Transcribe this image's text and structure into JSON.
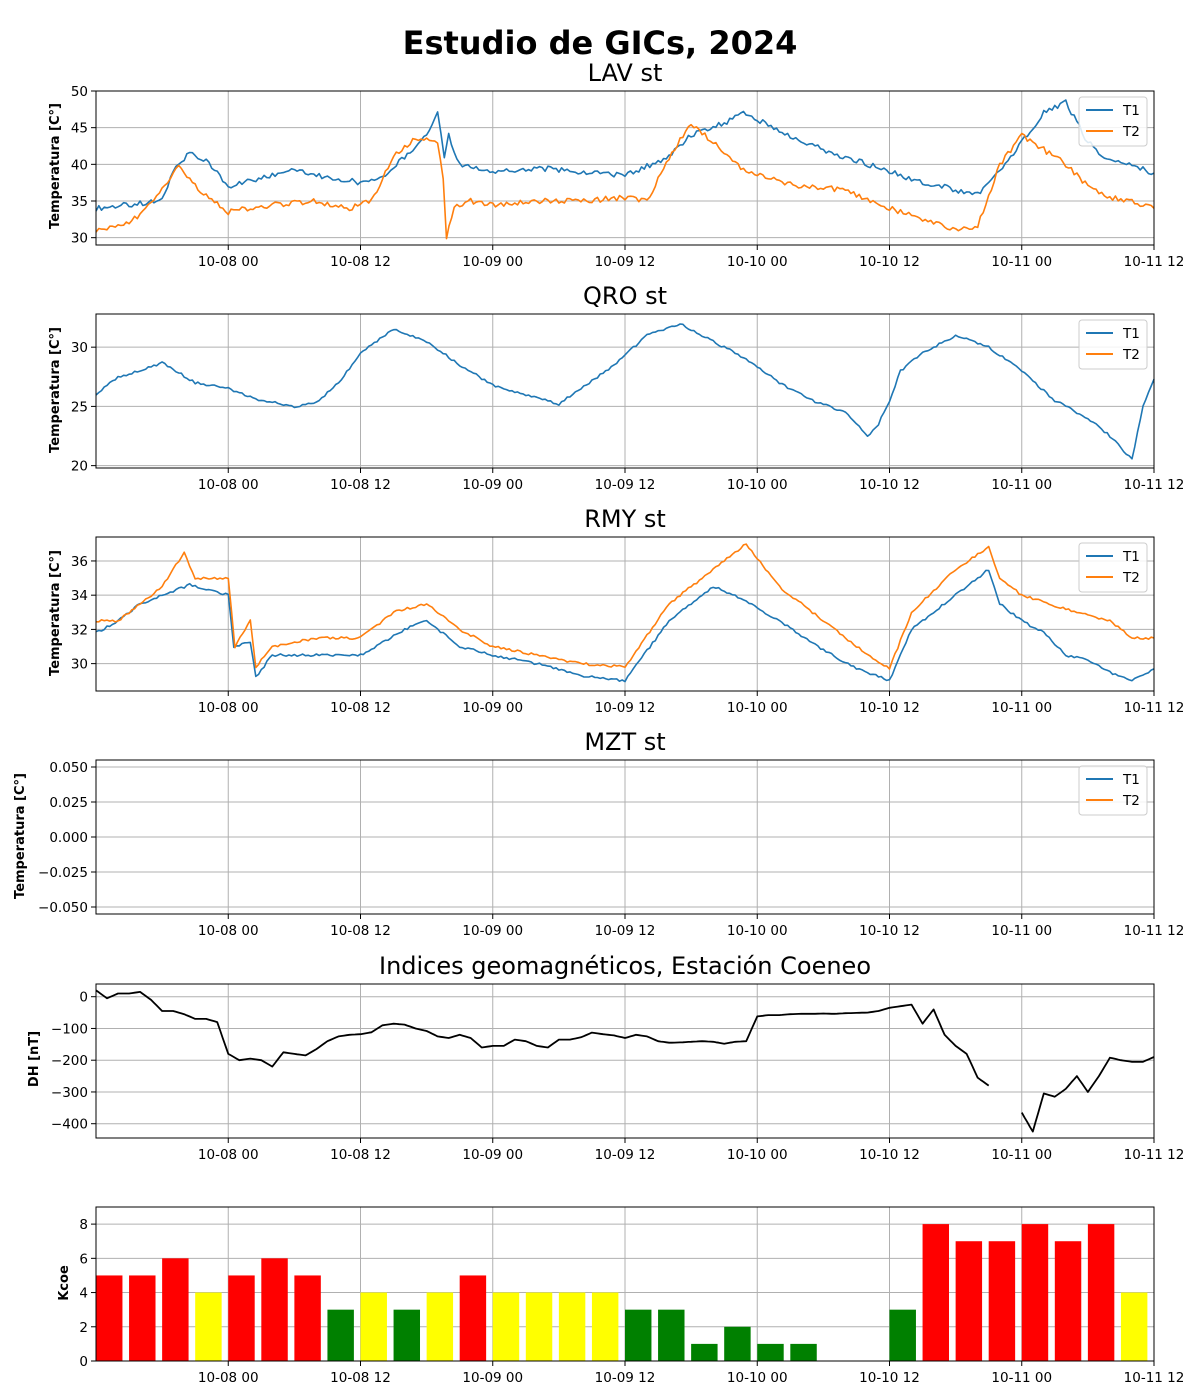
{
  "figure": {
    "title": "Estudio de GICs, 2024",
    "x_tick_labels": [
      "10-08 00",
      "10-08 12",
      "10-09 00",
      "10-09 12",
      "10-10 00",
      "10-10 12",
      "10-11 00",
      "10-11 12"
    ],
    "x_range_hours": [
      -12,
      84
    ],
    "colors": {
      "T1": "#1f77b4",
      "T2": "#ff7f0e",
      "DH": "#000000",
      "grid": "#b0b0b0"
    }
  },
  "chart_data": [
    {
      "type": "line",
      "title": "LAV st",
      "ylabel": "Temperatura [C°]",
      "ylim": [
        29,
        50
      ],
      "yticks": [
        "30",
        "35",
        "40",
        "45",
        "50"
      ],
      "ytick_values": [
        30,
        35,
        40,
        45,
        50
      ],
      "legend": "top-right",
      "grid": true,
      "x_unit": "hours since 10-08 00",
      "series": [
        {
          "name": "T1",
          "color": "#1f77b4",
          "x": [
            -12,
            -9,
            -6,
            -5,
            -3.5,
            -2,
            0,
            3,
            6,
            8,
            10,
            12,
            14,
            16,
            18,
            19,
            19.6,
            20,
            21,
            24,
            28,
            32,
            36,
            40,
            42,
            44,
            47,
            50,
            54,
            58,
            62,
            66,
            68,
            70,
            72,
            74,
            76,
            78,
            80,
            82,
            84
          ],
          "y": [
            34,
            34.5,
            35,
            39,
            41.5,
            40.5,
            37,
            38,
            39.5,
            38.5,
            38,
            37.5,
            38,
            41,
            44,
            47,
            41,
            44,
            40,
            39,
            39.5,
            39,
            38.5,
            41,
            44,
            45,
            47,
            44.5,
            42,
            40,
            38,
            36.5,
            36,
            39,
            43,
            47,
            48.5,
            43,
            40.5,
            40,
            38.8
          ]
        },
        {
          "name": "T2",
          "color": "#ff7f0e",
          "x": [
            -12,
            -10,
            -8,
            -6,
            -4.5,
            -3,
            0,
            4,
            8,
            11,
            13,
            15,
            17,
            19,
            19.5,
            19.8,
            20.5,
            22,
            24,
            28,
            32,
            36,
            38,
            40,
            42,
            44,
            46,
            48,
            52,
            56,
            59,
            62,
            64,
            66,
            68,
            70,
            72,
            74,
            76,
            78,
            80,
            82,
            84
          ],
          "y": [
            31,
            31.5,
            33,
            36.5,
            40,
            37,
            33.5,
            34.5,
            35,
            34,
            35,
            41,
            43.5,
            43,
            38,
            30,
            34,
            35,
            34.5,
            35,
            35,
            35.5,
            35,
            41,
            45.5,
            43,
            40,
            38.5,
            37,
            36.5,
            34.5,
            33,
            32,
            31,
            31.5,
            40,
            44,
            42,
            40,
            37,
            35.5,
            35,
            34
          ]
        }
      ]
    },
    {
      "type": "line",
      "title": "QRO st",
      "ylabel": "Temperatura [C°]",
      "ylim": [
        19.8,
        32.8
      ],
      "yticks": [
        "20",
        "25",
        "30"
      ],
      "ytick_values": [
        20,
        25,
        30
      ],
      "legend": "top-right",
      "grid": true,
      "x_unit": "hours since 10-08 00",
      "series": [
        {
          "name": "T1",
          "color": "#1f77b4",
          "x": [
            -12,
            -10,
            -8,
            -6,
            -3,
            0,
            3,
            6,
            8,
            10,
            12,
            15,
            18,
            21,
            24,
            27,
            30,
            32,
            35,
            38,
            41,
            44,
            47,
            50,
            53,
            56,
            58,
            59,
            60,
            61,
            63,
            66,
            69,
            72,
            75,
            78,
            80,
            82,
            83,
            84
          ],
          "y": [
            26,
            27.5,
            28,
            28.7,
            27,
            26.5,
            25.5,
            25,
            25.3,
            27,
            29.5,
            31.5,
            30.5,
            28.5,
            26.8,
            26,
            25.2,
            26.5,
            28.5,
            31,
            32,
            30.5,
            29,
            27,
            25.5,
            24.5,
            22.5,
            23.5,
            25.5,
            28,
            29.5,
            31,
            30,
            28,
            25.5,
            24,
            22.5,
            20.5,
            25,
            27.3
          ]
        },
        {
          "name": "T2",
          "color": "#ff7f0e",
          "x": [],
          "y": []
        }
      ]
    },
    {
      "type": "line",
      "title": "RMY st",
      "ylabel": "Temperatura [C°]",
      "ylim": [
        28.4,
        37.4
      ],
      "yticks": [
        "30",
        "32",
        "34",
        "36"
      ],
      "ytick_values": [
        30,
        32,
        34,
        36
      ],
      "legend": "top-right",
      "grid": true,
      "x_unit": "hours since 10-08 00",
      "series": [
        {
          "name": "T1",
          "color": "#1f77b4",
          "x": [
            -12,
            -10,
            -8,
            -6,
            -3.5,
            0,
            0.5,
            2,
            2.5,
            4,
            8,
            12,
            16,
            18,
            21,
            24,
            28,
            32,
            36,
            40,
            44,
            46,
            50,
            54,
            57,
            60,
            62,
            66,
            69,
            70,
            72,
            74,
            76,
            78,
            80,
            82,
            84
          ],
          "y": [
            31.8,
            32.5,
            33.5,
            34,
            34.6,
            34,
            31,
            31.3,
            29.2,
            30.5,
            30.5,
            30.5,
            32,
            32.5,
            31,
            30.5,
            30,
            29.3,
            29,
            32.5,
            34.5,
            34,
            32.5,
            30.8,
            29.7,
            29,
            32,
            34,
            35.5,
            33.5,
            32.5,
            31.8,
            30.5,
            30.2,
            29.5,
            29,
            29.7
          ]
        },
        {
          "name": "T2",
          "color": "#ff7f0e",
          "x": [
            -12,
            -10,
            -8,
            -6,
            -4,
            -3,
            0,
            0.6,
            2,
            2.5,
            4,
            8,
            12,
            15,
            18,
            21,
            24,
            28,
            32,
            36,
            40,
            44,
            47,
            50,
            54,
            57,
            60,
            62,
            66,
            69,
            70,
            72,
            76,
            80,
            82,
            84
          ],
          "y": [
            32.5,
            32.5,
            33.5,
            34.5,
            36.5,
            35,
            35,
            31,
            32.5,
            29.8,
            31,
            31.5,
            31.5,
            33,
            33.5,
            32,
            31,
            30.5,
            30,
            29.8,
            33.5,
            35.5,
            37,
            34.5,
            32.5,
            31,
            29.7,
            33,
            35.5,
            36.8,
            35,
            34,
            33.2,
            32.5,
            31.5,
            31.5
          ]
        }
      ]
    },
    {
      "type": "line",
      "title": "MZT st",
      "ylabel": "Temperatura [C°]",
      "ylim": [
        -0.055,
        0.055
      ],
      "yticks": [
        "−0.050",
        "−0.025",
        "0.000",
        "0.025",
        "0.050"
      ],
      "ytick_values": [
        -0.05,
        -0.025,
        0,
        0.025,
        0.05
      ],
      "legend": "top-right",
      "grid": true,
      "x_unit": "hours since 10-08 00",
      "series": [
        {
          "name": "T1",
          "color": "#1f77b4",
          "x": [],
          "y": []
        },
        {
          "name": "T2",
          "color": "#ff7f0e",
          "x": [],
          "y": []
        }
      ]
    },
    {
      "type": "line",
      "title": "Indices geomagnéticos, Estación Coeneo",
      "ylabel": "DH [nT]",
      "ylim": [
        -445,
        40
      ],
      "yticks": [
        "0",
        "−100",
        "−200",
        "−300",
        "−400"
      ],
      "ytick_values": [
        0,
        -100,
        -200,
        -300,
        -400
      ],
      "grid": true,
      "x_unit": "hours since 10-08 00",
      "series": [
        {
          "name": "DH",
          "color": "#000000",
          "x": [
            -12,
            -11,
            -10,
            -9,
            -8,
            -7,
            -6,
            -5,
            -4,
            -3,
            -2,
            -1,
            0,
            1,
            2,
            3,
            4,
            5,
            6,
            7,
            8,
            9,
            10,
            11,
            12,
            13,
            14,
            15,
            16,
            17,
            18,
            19,
            20,
            21,
            22,
            23,
            24,
            25,
            26,
            27,
            28,
            29,
            30,
            31,
            32,
            33,
            34,
            35,
            36,
            37,
            38,
            39,
            40,
            41,
            42,
            43,
            44,
            45,
            46,
            47,
            48,
            49,
            50,
            51,
            52,
            53,
            54,
            55,
            56,
            57,
            58,
            59,
            60,
            61,
            62,
            63,
            64,
            65,
            66,
            67,
            68,
            69,
            70,
            71,
            72,
            73,
            74,
            75,
            76,
            77,
            78,
            79,
            80,
            81,
            82,
            83,
            84
          ],
          "y": [
            20,
            -5,
            10,
            10,
            15,
            -10,
            -45,
            -45,
            -55,
            -70,
            -70,
            -80,
            -180,
            -200,
            -195,
            -200,
            -220,
            -175,
            -180,
            -185,
            -165,
            -140,
            -125,
            -120,
            -118,
            -112,
            -90,
            -85,
            -88,
            -100,
            -108,
            -125,
            -130,
            -120,
            -130,
            -160,
            -155,
            -155,
            -135,
            -140,
            -155,
            -160,
            -135,
            -135,
            -128,
            -113,
            -118,
            -122,
            -130,
            -120,
            -125,
            -140,
            -145,
            -144,
            -142,
            -140,
            -142,
            -148,
            -142,
            -140,
            -62,
            -58,
            -58,
            -55,
            -54,
            -54,
            -53,
            -54,
            -52,
            -51,
            -50,
            -45,
            -35,
            -30,
            -25,
            -85,
            -40,
            -120,
            -155,
            -180,
            -255,
            -280,
            null,
            null,
            -365,
            -425,
            -305,
            -315,
            -290,
            -250,
            -300,
            -250,
            -192,
            -200,
            -205,
            -205,
            -190
          ]
        }
      ]
    },
    {
      "type": "bar",
      "title": "",
      "ylabel": "Kcoe",
      "ylim": [
        0,
        9
      ],
      "yticks": [
        "0",
        "2",
        "4",
        "6",
        "8"
      ],
      "ytick_values": [
        0,
        2,
        4,
        6,
        8
      ],
      "grid": true,
      "x_unit": "hours since 10-08 00 (bar start, 3-hour intervals)",
      "bar_width_hours": 2.4,
      "x": [
        -12,
        -9,
        -6,
        -3,
        0,
        3,
        6,
        9,
        12,
        15,
        18,
        21,
        24,
        27,
        30,
        33,
        36,
        39,
        42,
        45,
        48,
        51,
        54,
        57,
        60,
        63,
        66,
        69,
        72,
        75,
        78,
        81
      ],
      "values": [
        5,
        5,
        6,
        4,
        5,
        6,
        5,
        3,
        4,
        3,
        4,
        5,
        4,
        4,
        4,
        4,
        3,
        3,
        1,
        2,
        1,
        1,
        0,
        0,
        3,
        8,
        7,
        7,
        8,
        7,
        8,
        4
      ],
      "colors": [
        "red",
        "red",
        "red",
        "yellow",
        "red",
        "red",
        "red",
        "green",
        "yellow",
        "green",
        "yellow",
        "red",
        "yellow",
        "yellow",
        "yellow",
        "yellow",
        "green",
        "green",
        "green",
        "green",
        "green",
        "green",
        "green",
        "green",
        "green",
        "red",
        "red",
        "red",
        "red",
        "red",
        "red",
        "yellow"
      ]
    }
  ]
}
